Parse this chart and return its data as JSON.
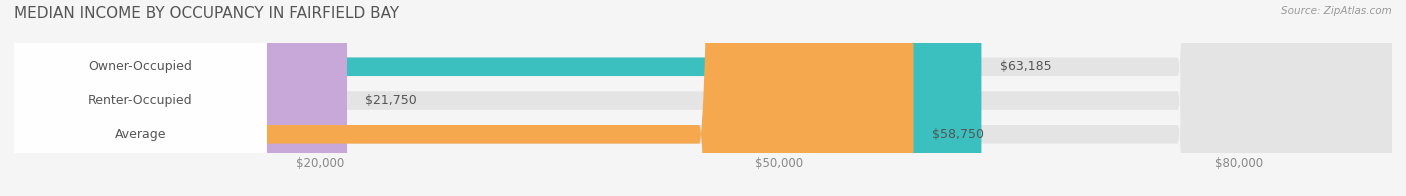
{
  "title": "MEDIAN INCOME BY OCCUPANCY IN FAIRFIELD BAY",
  "source": "Source: ZipAtlas.com",
  "categories": [
    "Owner-Occupied",
    "Renter-Occupied",
    "Average"
  ],
  "values": [
    63185,
    21750,
    58750
  ],
  "bar_colors": [
    "#3bbfbf",
    "#c8a8d8",
    "#f5a84e"
  ],
  "value_labels": [
    "$63,185",
    "$21,750",
    "$58,750"
  ],
  "xmax": 90000,
  "xticks": [
    20000,
    50000,
    80000
  ],
  "xtick_labels": [
    "$20,000",
    "$50,000",
    "$80,000"
  ],
  "background_color": "#f5f5f5",
  "bar_background_color": "#e4e4e4",
  "title_fontsize": 11,
  "label_fontsize": 9,
  "value_fontsize": 9,
  "bar_height": 0.55
}
